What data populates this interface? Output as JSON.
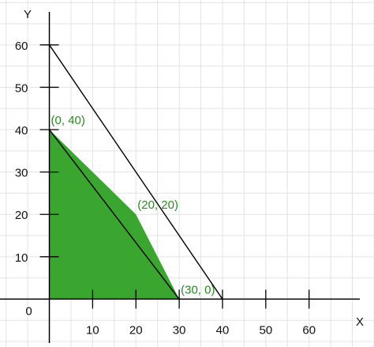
{
  "chart_data": {
    "type": "line",
    "xlabel": "X",
    "ylabel": "Y",
    "origin_label": "0",
    "xlim": [
      -11.4,
      75
    ],
    "ylim": [
      -11.3,
      70.6
    ],
    "x_ticks": [
      10,
      20,
      30,
      40,
      50,
      60
    ],
    "y_ticks": [
      10,
      20,
      30,
      40,
      50,
      60
    ],
    "grid_step": 5,
    "grid": true,
    "series": [
      {
        "points": [
          [
            0,
            60
          ],
          [
            40,
            0
          ]
        ],
        "color": "#000000"
      },
      {
        "points": [
          [
            0,
            40
          ],
          [
            30,
            0
          ]
        ],
        "color": "#000000"
      }
    ],
    "feasible_region": {
      "points": [
        [
          0,
          0
        ],
        [
          0,
          40
        ],
        [
          20,
          20
        ],
        [
          30,
          0
        ]
      ],
      "fill": "#3aa52f"
    },
    "annotations": [
      {
        "text": "(0, 40)",
        "x": 0,
        "y": 40,
        "color": "#2a8a24"
      },
      {
        "text": "(20, 20)",
        "x": 20,
        "y": 20,
        "color": "#2a8a24"
      },
      {
        "text": "(30, 0)",
        "x": 30,
        "y": 0,
        "color": "#2a8a24"
      }
    ]
  }
}
